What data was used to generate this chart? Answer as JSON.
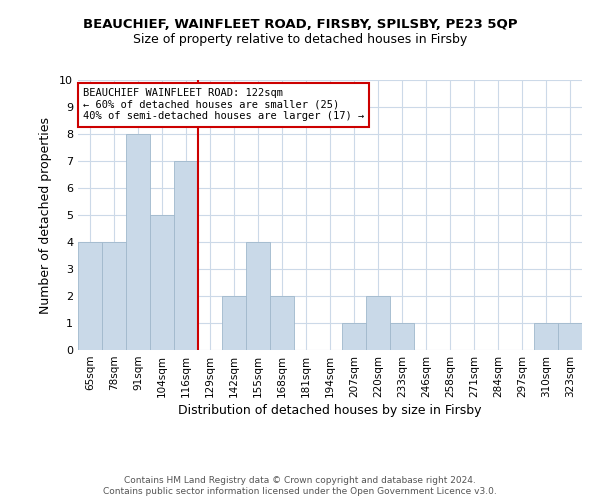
{
  "title": "BEAUCHIEF, WAINFLEET ROAD, FIRSBY, SPILSBY, PE23 5QP",
  "subtitle": "Size of property relative to detached houses in Firsby",
  "xlabel": "Distribution of detached houses by size in Firsby",
  "ylabel": "Number of detached properties",
  "categories": [
    "65sqm",
    "78sqm",
    "91sqm",
    "104sqm",
    "116sqm",
    "129sqm",
    "142sqm",
    "155sqm",
    "168sqm",
    "181sqm",
    "194sqm",
    "207sqm",
    "220sqm",
    "233sqm",
    "246sqm",
    "258sqm",
    "271sqm",
    "284sqm",
    "297sqm",
    "310sqm",
    "323sqm"
  ],
  "values": [
    4,
    4,
    8,
    5,
    7,
    0,
    2,
    4,
    2,
    0,
    0,
    1,
    2,
    1,
    0,
    0,
    0,
    0,
    0,
    1,
    1
  ],
  "bar_color": "#c9d9e8",
  "bar_edge_color": "#a0b8cc",
  "vline_x_index": 4.5,
  "vline_color": "#cc0000",
  "annotation_line1": "BEAUCHIEF WAINFLEET ROAD: 122sqm",
  "annotation_line2": "← 60% of detached houses are smaller (25)",
  "annotation_line3": "40% of semi-detached houses are larger (17) →",
  "annotation_box_edge_color": "#cc0000",
  "ylim": [
    0,
    10
  ],
  "yticks": [
    0,
    1,
    2,
    3,
    4,
    5,
    6,
    7,
    8,
    9,
    10
  ],
  "footer1": "Contains HM Land Registry data © Crown copyright and database right 2024.",
  "footer2": "Contains public sector information licensed under the Open Government Licence v3.0.",
  "background_color": "#ffffff",
  "grid_color": "#ccd9e8"
}
